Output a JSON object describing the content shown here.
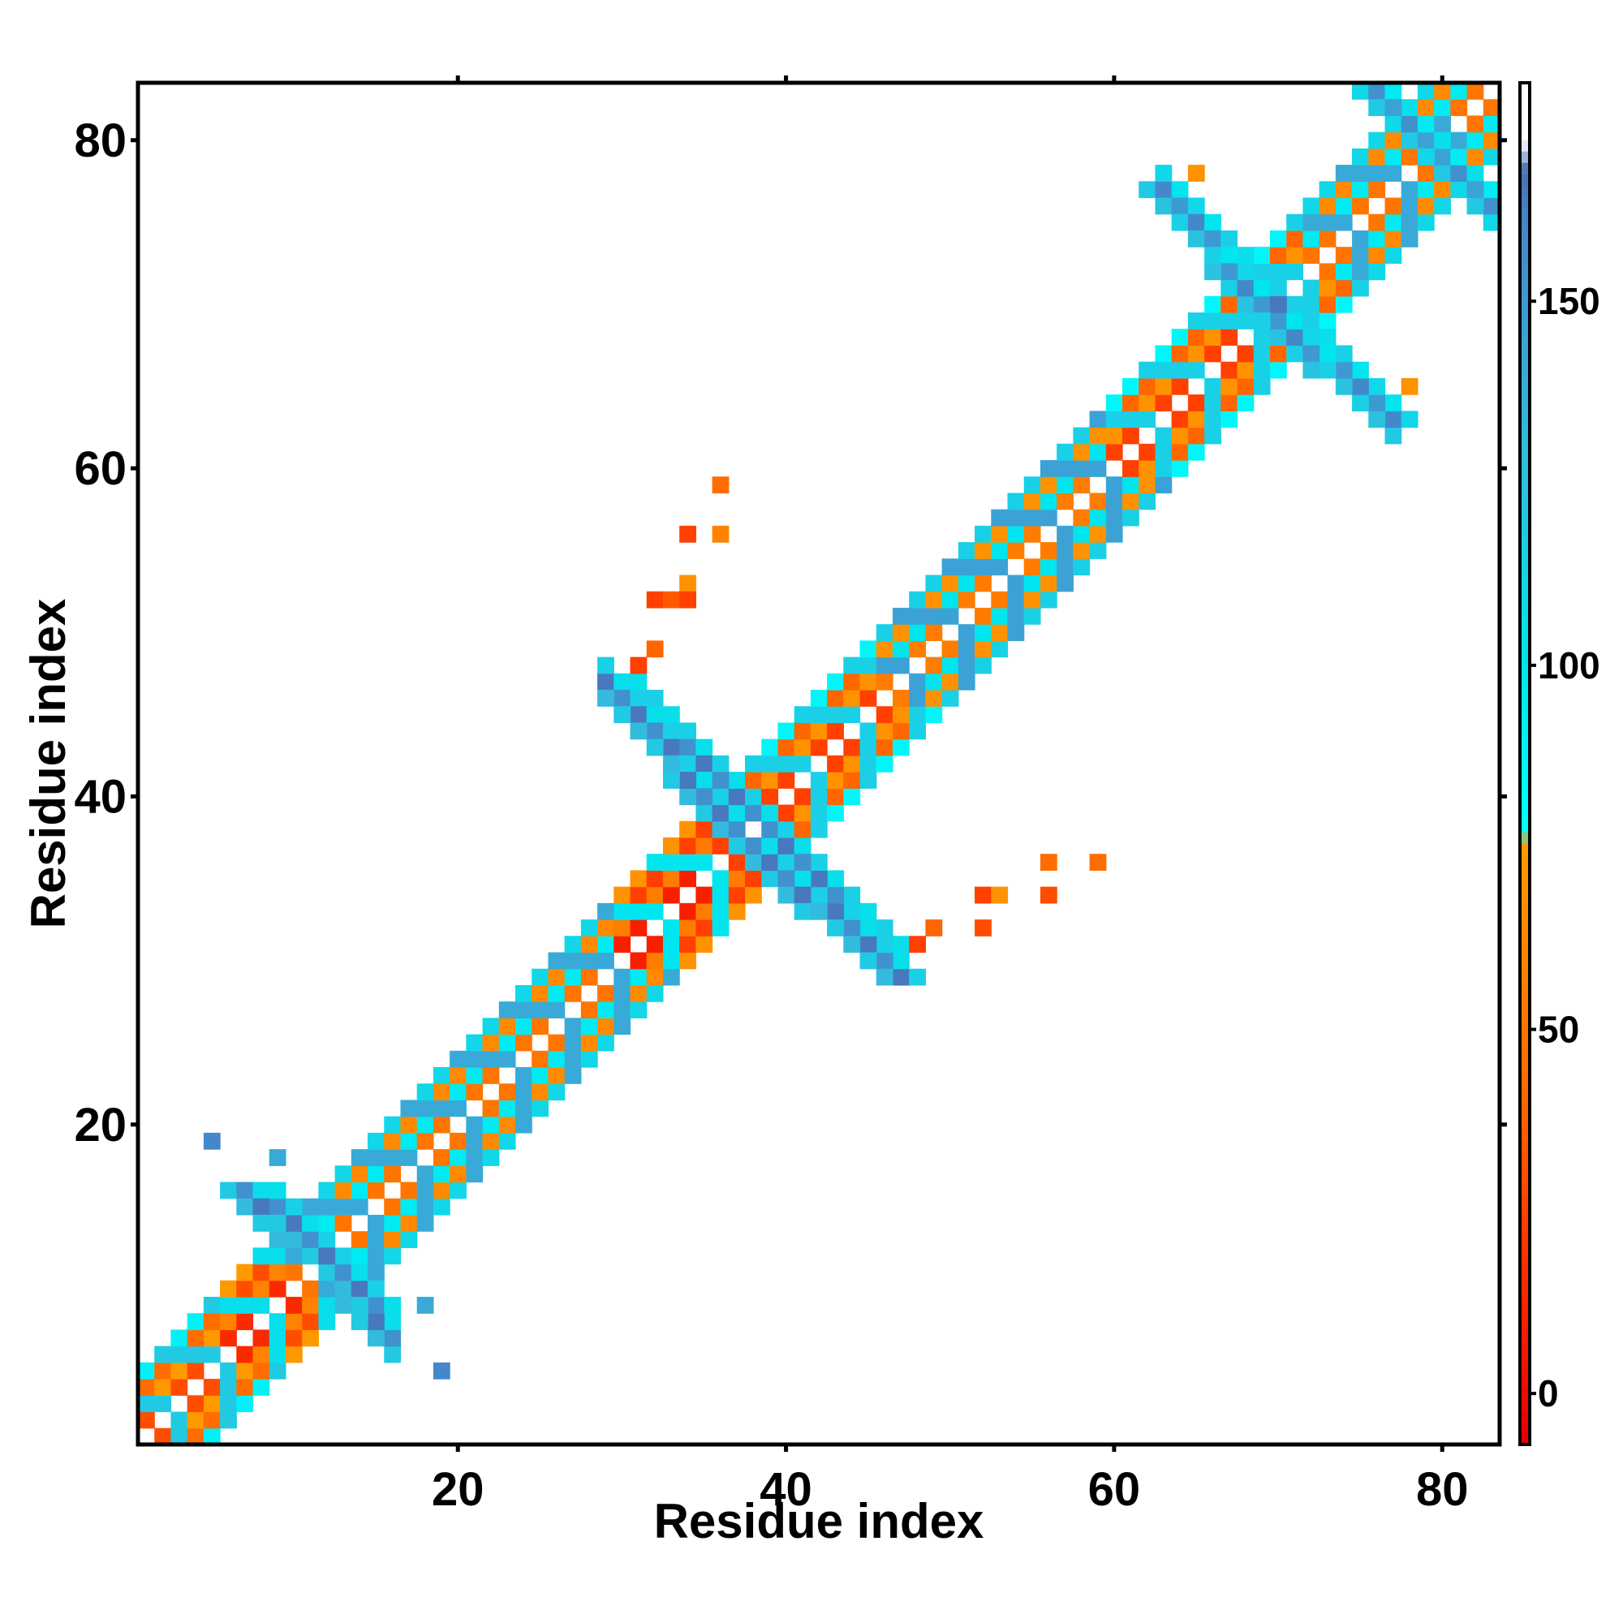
{
  "chart_data": {
    "type": "heatmap",
    "title": "",
    "xlabel": "Residue index",
    "ylabel": "Residue index",
    "xlim": [
      1,
      83
    ],
    "ylim": [
      1,
      83
    ],
    "xticks": [
      "20",
      "40",
      "60",
      "80"
    ],
    "yticks": [
      "20",
      "40",
      "60",
      "80"
    ],
    "xtick_values": [
      20,
      40,
      60,
      80
    ],
    "ytick_values": [
      20,
      40,
      60,
      80
    ],
    "grid": false,
    "legend": "colorbar-right",
    "colorbar": {
      "ticks": [
        "0",
        "50",
        "100",
        "150"
      ],
      "tick_values": [
        0,
        50,
        100,
        150
      ],
      "range": [
        -7,
        180
      ],
      "stops": [
        {
          "v": -7,
          "color": "#e60000"
        },
        {
          "v": 20,
          "color": "#ff3300"
        },
        {
          "v": 40,
          "color": "#ff6600"
        },
        {
          "v": 75,
          "color": "#ff9900"
        },
        {
          "v": 78,
          "color": "#00ffff"
        },
        {
          "v": 100,
          "color": "#00e5ee"
        },
        {
          "v": 130,
          "color": "#33bbdd"
        },
        {
          "v": 160,
          "color": "#4488cc"
        },
        {
          "v": 168,
          "color": "#4a6fb5"
        },
        {
          "v": 172,
          "color": "#ffffff"
        },
        {
          "v": 180,
          "color": "#ffffff"
        }
      ]
    },
    "segments": [
      {
        "x": [
          1,
          6
        ],
        "y": [
          1,
          6
        ],
        "kind": "diag",
        "value": 50
      },
      {
        "x": [
          6,
          10
        ],
        "y": [
          6,
          10
        ],
        "kind": "diag",
        "value": 35
      },
      {
        "x": [
          10,
          30
        ],
        "y": [
          10,
          30
        ],
        "kind": "diag",
        "value": 70
      },
      {
        "x": [
          30,
          36
        ],
        "y": [
          30,
          36
        ],
        "kind": "diag",
        "value": 30
      },
      {
        "x": [
          36,
          46
        ],
        "y": [
          36,
          46
        ],
        "kind": "diag",
        "value": 45
      },
      {
        "x": [
          46,
          60
        ],
        "y": [
          46,
          60
        ],
        "kind": "diag",
        "value": 75
      },
      {
        "x": [
          60,
          72
        ],
        "y": [
          60,
          72
        ],
        "kind": "diag",
        "value": 45
      },
      {
        "x": [
          72,
          83
        ],
        "y": [
          72,
          83
        ],
        "kind": "diag",
        "value": 70
      },
      {
        "x": [
          30,
          38
        ],
        "y": [
          47,
          39
        ],
        "kind": "anti",
        "value": 150
      },
      {
        "x": [
          38,
          47
        ],
        "y": [
          37,
          29
        ],
        "kind": "anti",
        "value": 150
      },
      {
        "x": [
          63,
          70
        ],
        "y": [
          77,
          70
        ],
        "kind": "anti",
        "value": 150
      },
      {
        "x": [
          70,
          77
        ],
        "y": [
          69,
          63
        ],
        "kind": "anti",
        "value": 145
      },
      {
        "x": [
          7,
          15
        ],
        "y": [
          16,
          9
        ],
        "kind": "anti",
        "value": 150
      },
      {
        "x": [
          76,
          83
        ],
        "y": [
          83,
          76
        ],
        "kind": "anti",
        "value": 140
      }
    ],
    "points": [
      {
        "x": 36,
        "y": 59,
        "value": 45
      },
      {
        "x": 34,
        "y": 56,
        "value": 25
      },
      {
        "x": 36,
        "y": 56,
        "value": 60
      },
      {
        "x": 34,
        "y": 53,
        "value": 70
      },
      {
        "x": 32,
        "y": 52,
        "value": 25
      },
      {
        "x": 33,
        "y": 52,
        "value": 35
      },
      {
        "x": 34,
        "y": 52,
        "value": 25
      },
      {
        "x": 32,
        "y": 49,
        "value": 40
      },
      {
        "x": 31,
        "y": 48,
        "value": 25
      },
      {
        "x": 56,
        "y": 36,
        "value": 45
      },
      {
        "x": 59,
        "y": 36,
        "value": 45
      },
      {
        "x": 52,
        "y": 34,
        "value": 25
      },
      {
        "x": 53,
        "y": 34,
        "value": 70
      },
      {
        "x": 56,
        "y": 34,
        "value": 30
      },
      {
        "x": 52,
        "y": 32,
        "value": 30
      },
      {
        "x": 49,
        "y": 32,
        "value": 40
      },
      {
        "x": 48,
        "y": 31,
        "value": 25
      },
      {
        "x": 5,
        "y": 19,
        "value": 160
      },
      {
        "x": 9,
        "y": 18,
        "value": 140
      },
      {
        "x": 18,
        "y": 9,
        "value": 140
      },
      {
        "x": 19,
        "y": 5,
        "value": 160
      },
      {
        "x": 65,
        "y": 78,
        "value": 70
      },
      {
        "x": 78,
        "y": 65,
        "value": 70
      }
    ]
  }
}
